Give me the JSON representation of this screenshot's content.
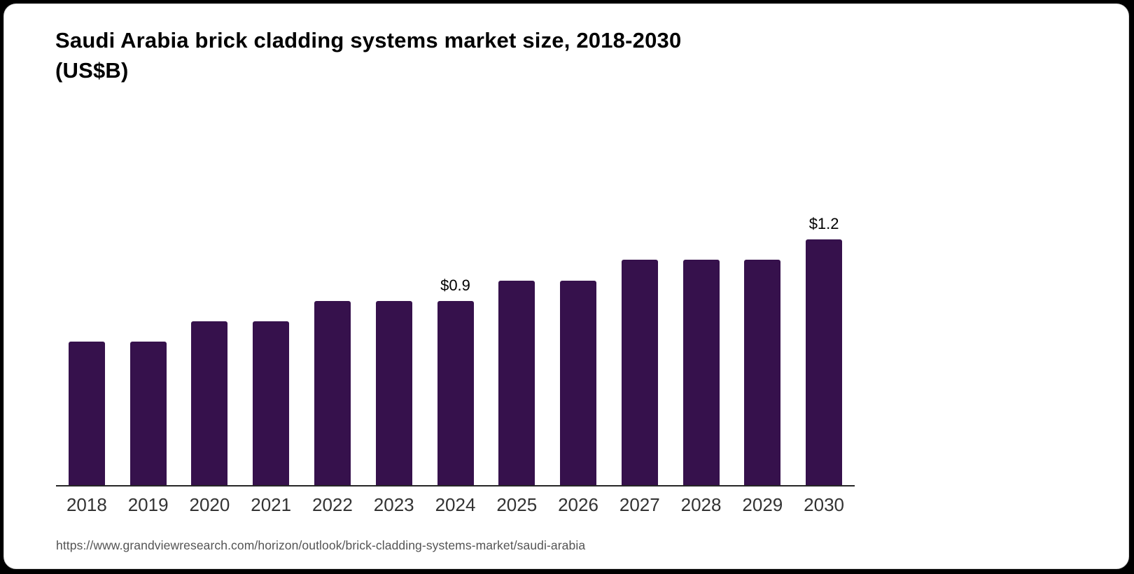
{
  "page": {
    "background_color": "#000000",
    "card_background": "#ffffff",
    "card_border_color": "#d9d9d9"
  },
  "chart_data": {
    "type": "bar",
    "title": "Saudi Arabia brick cladding systems market size, 2018-2030 (US$B)",
    "title_lines": [
      "Saudi Arabia brick cladding systems market size, 2018-2030",
      "(US$B)"
    ],
    "categories": [
      "2018",
      "2019",
      "2020",
      "2021",
      "2022",
      "2023",
      "2024",
      "2025",
      "2026",
      "2027",
      "2028",
      "2029",
      "2030"
    ],
    "values": [
      0.7,
      0.7,
      0.8,
      0.8,
      0.9,
      0.9,
      0.9,
      1.0,
      1.0,
      1.1,
      1.1,
      1.1,
      1.2
    ],
    "value_labels": [
      "",
      "",
      "",
      "",
      "",
      "",
      "$0.9",
      "",
      "",
      "",
      "",
      "",
      "$1.2"
    ],
    "unit": "US$B",
    "xlabel": "",
    "ylabel": "",
    "ylim": [
      0,
      1.4
    ],
    "grid": false,
    "legend": false,
    "colors": {
      "bar": "#36114C",
      "axis_line": "#262626",
      "tick_label": "#333333",
      "value_label": "#000000",
      "title": "#000000"
    }
  },
  "source": {
    "url": "https://www.grandviewresearch.com/horizon/outlook/brick-cladding-systems-market/saudi-arabia",
    "color": "#545454"
  }
}
